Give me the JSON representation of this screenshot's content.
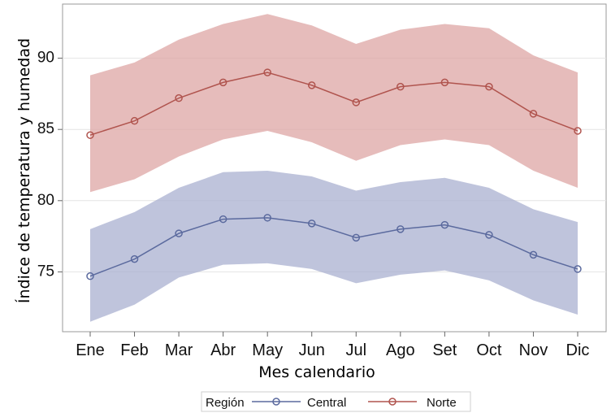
{
  "chart_data": {
    "type": "line",
    "xlabel": "Mes calendario",
    "ylabel": "Índice de temperatura y humedad",
    "categories": [
      "Ene",
      "Feb",
      "Mar",
      "Abr",
      "May",
      "Jun",
      "Jul",
      "Ago",
      "Set",
      "Oct",
      "Nov",
      "Dic"
    ],
    "x_month_positions": [
      1,
      2,
      3,
      4,
      5,
      6,
      7,
      8,
      9,
      10,
      11,
      12
    ],
    "y_ticks": [
      75,
      80,
      85,
      90
    ],
    "ylim": [
      70.8,
      93.8
    ],
    "grid": "horizontal",
    "legend": {
      "title": "Región",
      "placement": "bottom-center",
      "entries": [
        "Central",
        "Norte"
      ]
    },
    "series": [
      {
        "name": "Central",
        "color": "#5b6a9e",
        "band_color": "#a9b0d0",
        "values": [
          74.7,
          75.9,
          77.7,
          78.7,
          78.8,
          78.4,
          77.4,
          78.0,
          78.3,
          77.6,
          76.2,
          75.2
        ],
        "upper": [
          78.0,
          79.2,
          80.9,
          82.0,
          82.1,
          81.7,
          80.7,
          81.3,
          81.6,
          80.9,
          79.4,
          78.5
        ],
        "lower": [
          71.5,
          72.7,
          74.6,
          75.5,
          75.6,
          75.2,
          74.2,
          74.8,
          75.1,
          74.4,
          73.0,
          72.0
        ]
      },
      {
        "name": "Norte",
        "color": "#b0544e",
        "band_color": "#dda6a4",
        "values": [
          84.6,
          85.6,
          87.2,
          88.3,
          89.0,
          88.1,
          86.9,
          88.0,
          88.3,
          88.0,
          86.1,
          84.9
        ],
        "upper": [
          88.8,
          89.7,
          91.3,
          92.4,
          93.1,
          92.3,
          91.0,
          92.0,
          92.4,
          92.1,
          90.2,
          89.0
        ],
        "lower": [
          80.6,
          81.5,
          83.1,
          84.3,
          84.9,
          84.1,
          82.8,
          83.9,
          84.3,
          83.9,
          82.1,
          80.9
        ]
      }
    ]
  }
}
